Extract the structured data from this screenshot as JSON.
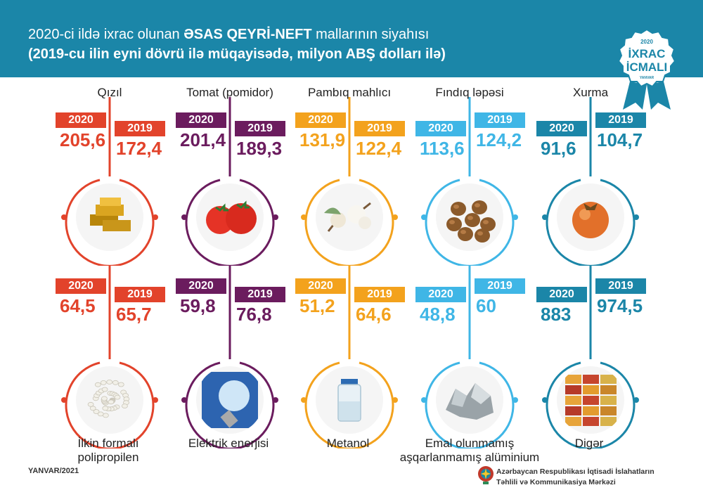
{
  "header": {
    "title_prefix": "2020-ci ildə ixrac olunan",
    "title_bold": "ƏSAS QEYRİ-NEFT",
    "title_suffix": "mallarının siyahısı",
    "subtitle": "(2019-cu ilin eyni dövrü ilə müqayisədə, milyon ABŞ dolları ilə)"
  },
  "badge": {
    "year": "2020",
    "line1": "İXRAC",
    "line2": "İCMALI",
    "month": "YANVAR"
  },
  "year_labels": {
    "current": "2020",
    "previous": "2019"
  },
  "items": [
    {
      "name": "Qızıl",
      "v2020": "205,6",
      "v2019": "172,4",
      "color": "#e2432b",
      "image": "gold-bars-image"
    },
    {
      "name": "Tomat (pomidor)",
      "v2020": "201,4",
      "v2019": "189,3",
      "color": "#6b1c5e",
      "image": "tomato-image"
    },
    {
      "name": "Pambıq mahlıcı",
      "v2020": "131,9",
      "v2019": "122,4",
      "color": "#f3a21d",
      "image": "cotton-image"
    },
    {
      "name": "Fındıq ləpəsi",
      "v2020": "113,6",
      "v2019": "124,2",
      "color": "#3fb6e6",
      "image": "hazelnut-image"
    },
    {
      "name": "Xurma",
      "v2020": "91,6",
      "v2019": "104,7",
      "color": "#1b86a8",
      "image": "persimmon-image"
    },
    {
      "name": "İlkin formalı polipropilen",
      "v2020": "64,5",
      "v2019": "65,7",
      "color": "#e2432b",
      "image": "polypropylene-image"
    },
    {
      "name": "Elektrik enerjisi",
      "v2020": "59,8",
      "v2019": "76,8",
      "color": "#6b1c5e",
      "image": "lightbulb-image"
    },
    {
      "name": "Metanol",
      "v2020": "51,2",
      "v2019": "64,6",
      "color": "#f3a21d",
      "image": "methanol-bottle-image"
    },
    {
      "name": "Emal olunmamış aşqarlanmamış alüminium",
      "v2020": "48,8",
      "v2019": "60",
      "color": "#3fb6e6",
      "image": "aluminium-image"
    },
    {
      "name": "Digər",
      "v2020": "883",
      "v2019": "974,5",
      "color": "#1b86a8",
      "image": "containers-image"
    }
  ],
  "footer": {
    "date": "YANVAR/2021",
    "org_line1": "Azərbaycan Respublikası İqtisadi İslahatların",
    "org_line2": "Təhlili və Kommunikasiya Mərkəzi"
  }
}
